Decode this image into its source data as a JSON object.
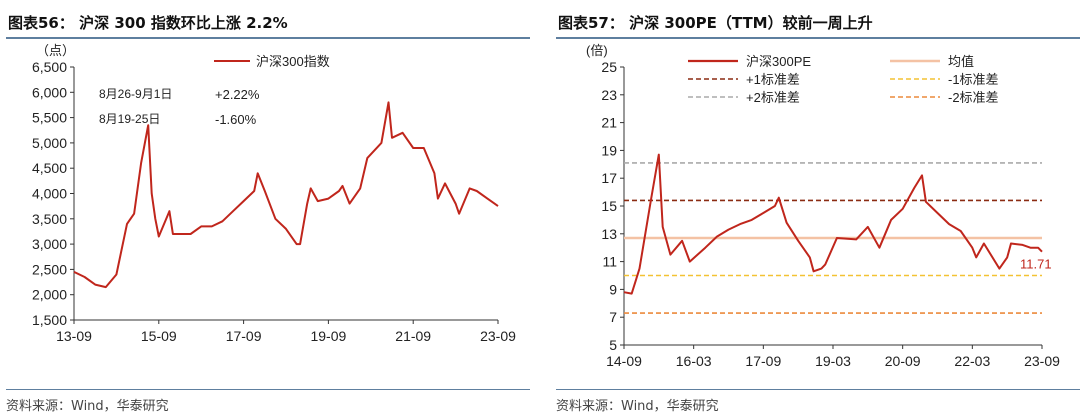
{
  "figure_left": {
    "title": "图表56： 沪深 300 指数环比上涨 2.2%",
    "source": "资料来源：Wind，华泰研究"
  },
  "figure_right": {
    "title": "图表57： 沪深 300PE（TTM）较前一周上升",
    "source": "资料来源：Wind，华泰研究"
  },
  "colors": {
    "accent_red": "#c0261c",
    "mean": "#f4c2a4",
    "plus1": "#8b2b12",
    "minus1": "#f3c233",
    "plus2": "#aaaaaa",
    "minus2": "#ec8a3c",
    "rule": "#5e7f9f"
  },
  "chart_data": [
    {
      "type": "line",
      "unit_label": "（点）",
      "ylim": [
        1500,
        6500
      ],
      "yticks": [
        "1,500",
        "2,000",
        "2,500",
        "3,000",
        "3,500",
        "4,000",
        "4,500",
        "5,000",
        "5,500",
        "6,000",
        "6,500"
      ],
      "xticks": [
        "13-09",
        "15-09",
        "17-09",
        "19-09",
        "21-09",
        "23-09"
      ],
      "legend": [
        "沪深300指数"
      ],
      "legend_position": "top",
      "annotations": [
        {
          "label": "8月26-9月1日",
          "value": "+2.22%"
        },
        {
          "label": "8月19-25日",
          "value": "-1.60%"
        }
      ],
      "series": [
        {
          "name": "沪深300指数",
          "x": [
            "2013-09",
            "2013-12",
            "2014-03",
            "2014-06",
            "2014-09",
            "2014-12",
            "2015-02",
            "2015-04",
            "2015-06",
            "2015-07",
            "2015-08",
            "2015-09",
            "2015-12",
            "2016-01",
            "2016-03",
            "2016-06",
            "2016-09",
            "2016-12",
            "2017-03",
            "2017-06",
            "2017-09",
            "2017-12",
            "2018-01",
            "2018-03",
            "2018-06",
            "2018-09",
            "2018-12",
            "2019-01",
            "2019-03",
            "2019-04",
            "2019-06",
            "2019-09",
            "2019-12",
            "2020-01",
            "2020-03",
            "2020-06",
            "2020-08",
            "2020-12",
            "2021-02",
            "2021-03",
            "2021-06",
            "2021-09",
            "2021-12",
            "2022-03",
            "2022-04",
            "2022-06",
            "2022-09",
            "2022-10",
            "2023-01",
            "2023-03",
            "2023-06",
            "2023-08",
            "2023-09"
          ],
          "values": [
            2450,
            2350,
            2200,
            2150,
            2400,
            3400,
            3600,
            4600,
            5350,
            4000,
            3500,
            3150,
            3650,
            3200,
            3200,
            3200,
            3350,
            3350,
            3450,
            3650,
            3850,
            4050,
            4400,
            4050,
            3500,
            3300,
            3000,
            3000,
            3800,
            4100,
            3850,
            3900,
            4050,
            4150,
            3800,
            4100,
            4700,
            5000,
            5800,
            5100,
            5200,
            4900,
            4900,
            4400,
            3900,
            4200,
            3800,
            3600,
            4100,
            4050,
            3900,
            3800,
            3750
          ]
        }
      ]
    },
    {
      "type": "line",
      "unit_label": "(倍)",
      "ylim": [
        5,
        25
      ],
      "yticks": [
        "5",
        "7",
        "9",
        "11",
        "13",
        "15",
        "17",
        "19",
        "21",
        "23",
        "25"
      ],
      "xticks": [
        "14-09",
        "16-03",
        "17-09",
        "19-03",
        "20-09",
        "22-03",
        "23-09"
      ],
      "legend": [
        "沪深300PE",
        "均值",
        "+1标准差",
        "-1标准差",
        "+2标准差",
        "-2标准差"
      ],
      "legend_position": "top",
      "last_value_label": "11.71",
      "series": [
        {
          "name": "沪深300PE",
          "x": [
            "2014-09",
            "2014-11",
            "2015-01",
            "2015-04",
            "2015-06",
            "2015-07",
            "2015-09",
            "2015-12",
            "2016-02",
            "2016-06",
            "2016-09",
            "2016-12",
            "2017-03",
            "2017-06",
            "2017-09",
            "2017-12",
            "2018-01",
            "2018-03",
            "2018-06",
            "2018-09",
            "2018-10",
            "2018-12",
            "2019-01",
            "2019-04",
            "2019-09",
            "2019-12",
            "2020-03",
            "2020-06",
            "2020-09",
            "2020-12",
            "2021-02",
            "2021-03",
            "2021-06",
            "2021-09",
            "2021-12",
            "2022-03",
            "2022-04",
            "2022-06",
            "2022-10",
            "2022-12",
            "2023-01",
            "2023-04",
            "2023-06",
            "2023-08",
            "2023-09"
          ],
          "values": [
            8.8,
            8.7,
            10.5,
            15.5,
            18.7,
            13.5,
            11.5,
            12.5,
            11.0,
            12.0,
            12.8,
            13.3,
            13.7,
            14.0,
            14.5,
            15.0,
            15.6,
            13.8,
            12.5,
            11.3,
            10.3,
            10.5,
            10.8,
            12.7,
            12.6,
            13.5,
            12.0,
            14.0,
            14.8,
            16.3,
            17.2,
            15.3,
            14.5,
            13.7,
            13.2,
            12.0,
            11.3,
            12.3,
            10.5,
            11.3,
            12.3,
            12.2,
            12.0,
            12.0,
            11.71
          ]
        }
      ],
      "reference_lines": [
        {
          "name": "均值",
          "value": 12.7
        },
        {
          "name": "+1标准差",
          "value": 15.4
        },
        {
          "name": "-1标准差",
          "value": 10.0
        },
        {
          "name": "+2标准差",
          "value": 18.1
        },
        {
          "name": "-2标准差",
          "value": 7.3
        }
      ]
    }
  ]
}
